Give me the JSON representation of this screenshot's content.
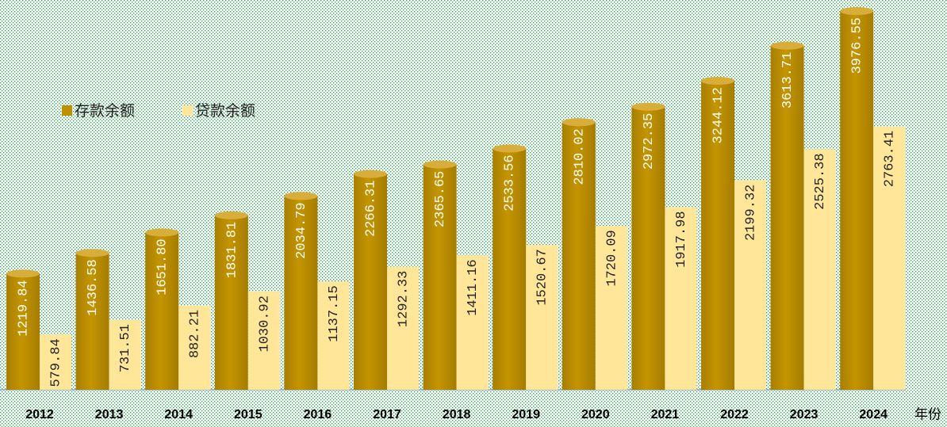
{
  "chart_data": {
    "type": "bar",
    "x_label": "年份",
    "categories": [
      "2012",
      "2013",
      "2014",
      "2015",
      "2016",
      "2017",
      "2018",
      "2019",
      "2020",
      "2021",
      "2022",
      "2023",
      "2024"
    ],
    "series": [
      {
        "name": "存款余额",
        "color": "#bf9000",
        "values": [
          1219.84,
          1436.58,
          1651.8,
          1831.81,
          2034.79,
          2266.31,
          2365.65,
          2533.56,
          2810.02,
          2972.35,
          3244.12,
          3613.71,
          3976.55
        ],
        "value_labels": [
          "1219.84",
          "1436.58",
          "1651.80",
          "1831.81",
          "2034.79",
          "2266.31",
          "2365.65",
          "2533.56",
          "2810.02",
          "2972.35",
          "3244.12",
          "3613.71",
          "3976.55"
        ]
      },
      {
        "name": "贷款余额",
        "color": "#ffe699",
        "values": [
          579.84,
          731.51,
          882.21,
          1030.92,
          1137.15,
          1292.33,
          1411.16,
          1520.67,
          1720.09,
          1917.98,
          2199.32,
          2525.38,
          2763.41
        ],
        "value_labels": [
          "579.84",
          "731.51",
          "882.21",
          "1030.92",
          "1137.15",
          "1292.33",
          "1411.16",
          "1520.67",
          "1720.09",
          "1917.98",
          "2199.32",
          "2525.38",
          "2763.41"
        ]
      }
    ],
    "legend": "left"
  }
}
